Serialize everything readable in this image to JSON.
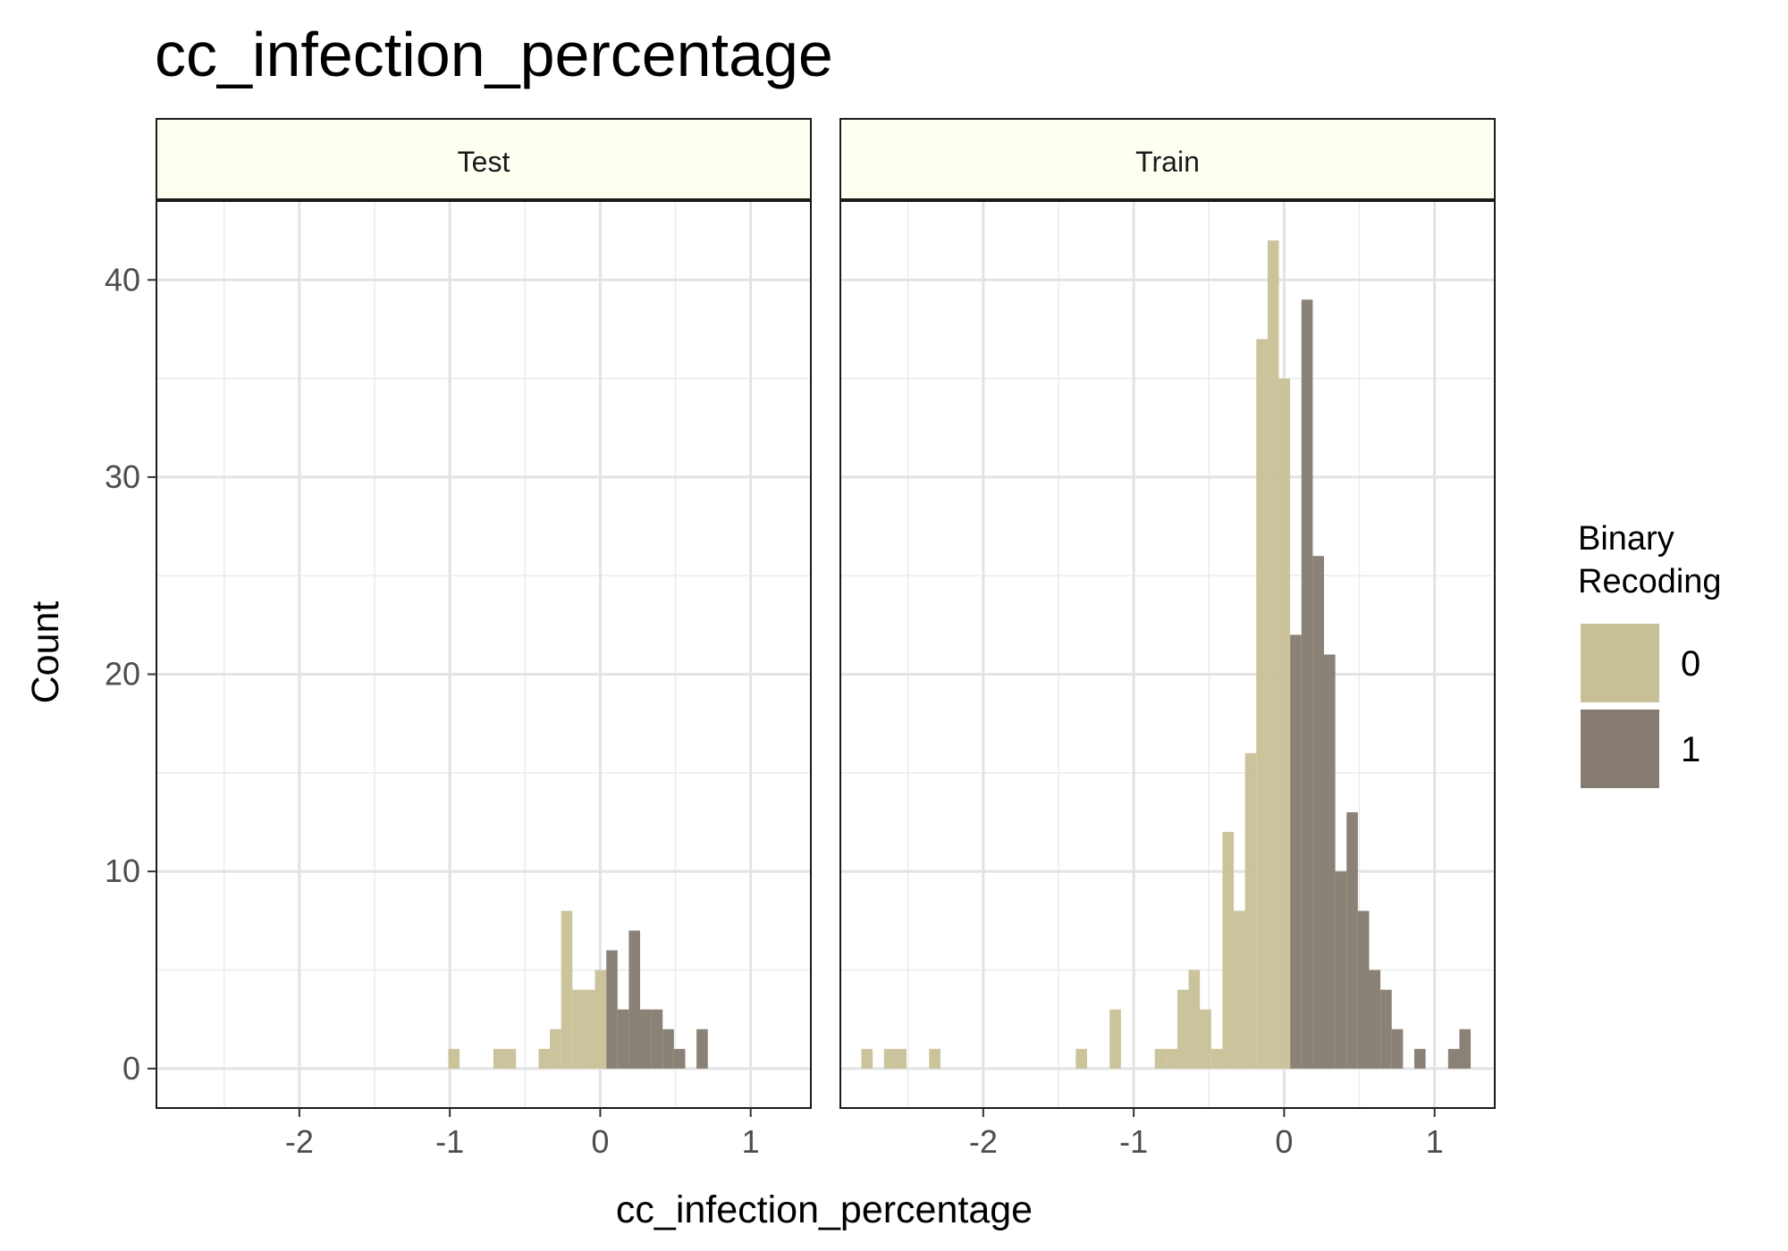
{
  "chart_data": {
    "type": "bar",
    "title": "cc_infection_percentage",
    "xlabel": "cc_infection_percentage",
    "ylabel": "Count",
    "xlim": [
      -2.95,
      1.4
    ],
    "ylim": [
      -2,
      44
    ],
    "x_ticks": [
      -2,
      -1,
      0,
      1
    ],
    "y_ticks": [
      0,
      10,
      20,
      30,
      40
    ],
    "x_minor_grid": [
      -2.5,
      -1.5,
      -0.5,
      0.5
    ],
    "y_minor_grid": [
      5,
      15,
      25,
      35
    ],
    "grid": true,
    "bin_width": 0.075,
    "legend": {
      "title_lines": [
        "Binary",
        "Recoding"
      ],
      "position": "right",
      "entries": [
        {
          "label": "0",
          "color": "#c8c096"
        },
        {
          "label": "1",
          "color": "#857b70"
        }
      ]
    },
    "colors": {
      "0": "#c8c096",
      "1": "#857b70"
    },
    "facets": [
      {
        "label": "Test",
        "series": [
          {
            "name": "0",
            "bins": [
              [
                -1.01,
                -0.935,
                1
              ],
              [
                -0.71,
                -0.635,
                1
              ],
              [
                -0.635,
                -0.56,
                1
              ],
              [
                -0.41,
                -0.335,
                1
              ],
              [
                -0.335,
                -0.26,
                2
              ],
              [
                -0.26,
                -0.185,
                8
              ],
              [
                -0.185,
                -0.11,
                4
              ],
              [
                -0.11,
                -0.035,
                4
              ],
              [
                -0.035,
                0.04,
                5
              ]
            ]
          },
          {
            "name": "1",
            "bins": [
              [
                0.04,
                0.115,
                6
              ],
              [
                0.115,
                0.19,
                3
              ],
              [
                0.19,
                0.265,
                7
              ],
              [
                0.265,
                0.34,
                3
              ],
              [
                0.34,
                0.415,
                3
              ],
              [
                0.415,
                0.49,
                2
              ],
              [
                0.49,
                0.565,
                1
              ],
              [
                0.64,
                0.715,
                2
              ]
            ]
          }
        ]
      },
      {
        "label": "Train",
        "series": [
          {
            "name": "0",
            "bins": [
              [
                -2.81,
                -2.735,
                1
              ],
              [
                -2.66,
                -2.585,
                1
              ],
              [
                -2.585,
                -2.51,
                1
              ],
              [
                -2.36,
                -2.285,
                1
              ],
              [
                -1.385,
                -1.31,
                1
              ],
              [
                -1.16,
                -1.085,
                3
              ],
              [
                -0.86,
                -0.785,
                1
              ],
              [
                -0.785,
                -0.71,
                1
              ],
              [
                -0.71,
                -0.635,
                4
              ],
              [
                -0.635,
                -0.56,
                5
              ],
              [
                -0.56,
                -0.485,
                3
              ],
              [
                -0.485,
                -0.41,
                1
              ],
              [
                -0.41,
                -0.335,
                12
              ],
              [
                -0.335,
                -0.26,
                8
              ],
              [
                -0.26,
                -0.185,
                16
              ],
              [
                -0.185,
                -0.11,
                37
              ],
              [
                -0.11,
                -0.035,
                42
              ],
              [
                -0.035,
                0.04,
                35
              ]
            ]
          },
          {
            "name": "1",
            "bins": [
              [
                0.04,
                0.115,
                22
              ],
              [
                0.115,
                0.19,
                39
              ],
              [
                0.19,
                0.265,
                26
              ],
              [
                0.265,
                0.34,
                21
              ],
              [
                0.34,
                0.415,
                10
              ],
              [
                0.415,
                0.49,
                13
              ],
              [
                0.49,
                0.565,
                8
              ],
              [
                0.565,
                0.64,
                5
              ],
              [
                0.64,
                0.715,
                4
              ],
              [
                0.715,
                0.79,
                2
              ],
              [
                0.865,
                0.94,
                1
              ],
              [
                1.09,
                1.165,
                1
              ],
              [
                1.165,
                1.24,
                2
              ]
            ]
          }
        ]
      }
    ]
  }
}
